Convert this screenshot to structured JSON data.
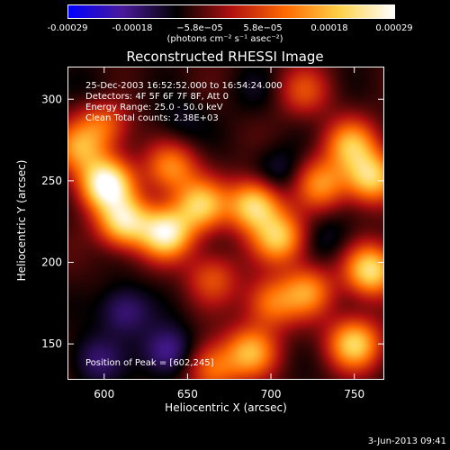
{
  "colorbar": {
    "ticks": [
      "-0.00029",
      "-0.00018",
      "−5.8e−05",
      "5.8e−05",
      "0.00018",
      "0.00029"
    ],
    "tick_values": [
      -0.00029,
      -0.00018,
      -5.8e-05,
      5.8e-05,
      0.00018,
      0.00029
    ],
    "range": [
      -0.00029,
      0.00029
    ],
    "unit_label": "(photons cm⁻² s⁻¹ asec⁻²)",
    "colors": [
      "#0000ff",
      "#4a1a9a",
      "#000000",
      "#b01010",
      "#ff6a00",
      "#ffd24a",
      "#ffffff"
    ]
  },
  "annotations": {
    "time_range": "25-Dec-2003 16:52:52.000 to 16:54:24.000",
    "detectors": "Detectors: 4F 5F 6F 7F 8F, Att 0",
    "energy": "Energy Range: 25.0 - 50.0 keV",
    "clean": "Clean     Total counts: 2.38E+03",
    "peak": "Position of Peak = [602,245]"
  },
  "date_stamp": "3-Jun-2013 09:41",
  "chart_data": {
    "type": "heatmap",
    "title": "Reconstructed RHESSI Image",
    "xlabel": "Heliocentric X (arcsec)",
    "ylabel": "Heliocentric Y (arcsec)",
    "xlim": [
      578,
      768
    ],
    "ylim": [
      128,
      320
    ],
    "x_ticks": [
      600,
      650,
      700,
      750
    ],
    "y_ticks": [
      150,
      200,
      250,
      300
    ],
    "grid": false,
    "peak_position": [
      602,
      245
    ],
    "hot_spots": [
      {
        "x": 601,
        "y": 248,
        "value": 0.00029
      },
      {
        "x": 612,
        "y": 225,
        "value": 0.00022
      },
      {
        "x": 637,
        "y": 218,
        "value": 0.00025
      },
      {
        "x": 658,
        "y": 235,
        "value": 0.00018
      },
      {
        "x": 640,
        "y": 258,
        "value": 0.00012
      },
      {
        "x": 690,
        "y": 235,
        "value": 0.00022
      },
      {
        "x": 705,
        "y": 215,
        "value": 0.00018
      },
      {
        "x": 730,
        "y": 248,
        "value": 0.00012
      },
      {
        "x": 748,
        "y": 272,
        "value": 0.00015
      },
      {
        "x": 760,
        "y": 252,
        "value": 0.0002
      },
      {
        "x": 760,
        "y": 195,
        "value": 0.00022
      },
      {
        "x": 750,
        "y": 150,
        "value": 0.0002
      },
      {
        "x": 722,
        "y": 182,
        "value": 0.00012
      },
      {
        "x": 700,
        "y": 175,
        "value": 0.0001
      },
      {
        "x": 688,
        "y": 145,
        "value": 0.00015
      },
      {
        "x": 665,
        "y": 135,
        "value": 0.0001
      },
      {
        "x": 600,
        "y": 285,
        "value": 8e-05
      },
      {
        "x": 585,
        "y": 270,
        "value": 0.00012
      },
      {
        "x": 720,
        "y": 305,
        "value": 5e-05
      },
      {
        "x": 665,
        "y": 190,
        "value": 6e-05
      }
    ],
    "cold_spots": [
      {
        "x": 612,
        "y": 170,
        "value": -0.00018
      },
      {
        "x": 638,
        "y": 145,
        "value": -0.0002
      },
      {
        "x": 595,
        "y": 140,
        "value": -0.00016
      },
      {
        "x": 645,
        "y": 285,
        "value": -0.00012
      },
      {
        "x": 690,
        "y": 305,
        "value": -0.0001
      },
      {
        "x": 705,
        "y": 255,
        "value": -0.00014
      },
      {
        "x": 735,
        "y": 215,
        "value": -0.00012
      },
      {
        "x": 598,
        "y": 305,
        "value": -0.0001
      }
    ]
  }
}
